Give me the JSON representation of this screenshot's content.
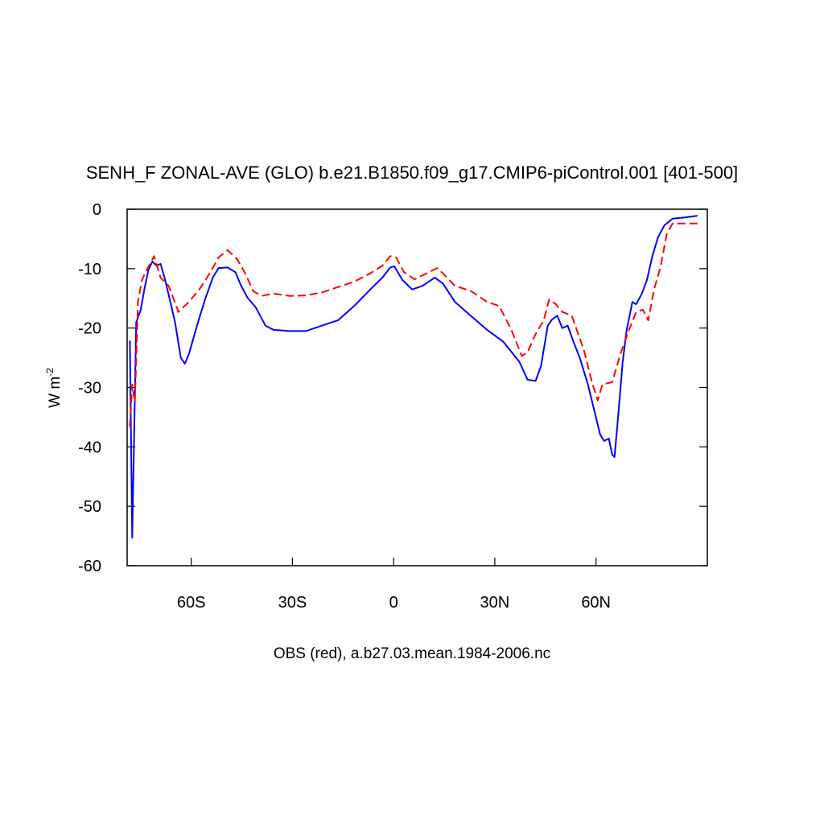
{
  "chart_data": {
    "type": "line",
    "title": "SENH_F ZONAL-AVE (GLO) b.e21.B1850.f09_g17.CMIP6-piControl.001 [401-500]",
    "x_label": "OBS (red), a.b27.03.mean.1984-2006.nc",
    "y_label": "W m",
    "y_label_sup": "-2",
    "xlim": [
      -79,
      93
    ],
    "ylim": [
      -60,
      0
    ],
    "xticks": [
      {
        "value": -60,
        "label": "60S"
      },
      {
        "value": -30,
        "label": "30S"
      },
      0,
      {
        "value": 30,
        "label": "30N"
      },
      {
        "value": 60,
        "label": "60N"
      }
    ],
    "yticks": [
      0,
      -10,
      -20,
      -30,
      -40,
      -50,
      -60
    ],
    "series": [
      {
        "color": "#0000ff",
        "dash": false,
        "x": [
          -78.2,
          -77.5,
          -76.3,
          -75,
          -73.9,
          -72.7,
          -71.5,
          -70.3,
          -69.1,
          -67.9,
          -66.2,
          -64.8,
          -63.1,
          -61.9,
          -60.7,
          -58.3,
          -55.9,
          -53.6,
          -51.9,
          -49.2,
          -46.9,
          -45.2,
          -43.3,
          -40.9,
          -38,
          -35.6,
          -30.8,
          -26,
          -21.3,
          -16.5,
          -11.7,
          -6.9,
          -3.3,
          -1,
          0.2,
          2.6,
          5.5,
          8.6,
          12.2,
          14.6,
          18.2,
          23,
          27.7,
          32.5,
          37.3,
          39.7,
          42.1,
          43.7,
          45.7,
          46.9,
          48.5,
          50,
          51.6,
          53.3,
          55.2,
          57.6,
          59.5,
          61.2,
          62.4,
          63.8,
          64.8,
          65.5,
          66.7,
          67.9,
          69.1,
          70.8,
          71.9,
          73.6,
          75.1,
          76.7,
          78.4,
          80.3,
          82.7,
          86.3,
          90.1
        ],
        "values": [
          -22.1,
          -55.3,
          -19,
          -17,
          -13.5,
          -10.2,
          -8.8,
          -9.5,
          -9.2,
          -11.5,
          -15.6,
          -19,
          -25,
          -26,
          -24.4,
          -19.6,
          -15.2,
          -11.5,
          -9.9,
          -9.8,
          -10.6,
          -12.9,
          -14.9,
          -16.5,
          -19.6,
          -20.3,
          -20.5,
          -20.5,
          -19.6,
          -18.7,
          -16.3,
          -13.5,
          -11.5,
          -9.8,
          -9.6,
          -11.9,
          -13.5,
          -12.9,
          -11.5,
          -12.5,
          -15.6,
          -18,
          -20.3,
          -22.3,
          -25.7,
          -28.7,
          -28.9,
          -26.4,
          -19.6,
          -18.6,
          -17.9,
          -20,
          -19.6,
          -22.3,
          -25,
          -29.5,
          -33.9,
          -37.9,
          -39,
          -38.6,
          -41.3,
          -41.7,
          -33.9,
          -25.7,
          -20.3,
          -15.6,
          -16,
          -14.2,
          -11.9,
          -7.9,
          -4.7,
          -2.7,
          -1.6,
          -1.4,
          -1.1
        ]
      },
      {
        "color": "#ff0000",
        "dash": true,
        "x": [
          -78.2,
          -77.5,
          -76.7,
          -75.8,
          -74.6,
          -73.2,
          -71,
          -69.1,
          -66.7,
          -63.8,
          -60.7,
          -57.6,
          -54.3,
          -51.9,
          -49.2,
          -46.4,
          -44,
          -41.6,
          -39.2,
          -35.6,
          -30.8,
          -26,
          -21.3,
          -16.5,
          -11.7,
          -6.9,
          -3.3,
          -1,
          0.7,
          3.1,
          6.2,
          9.8,
          12.9,
          14.6,
          18.2,
          23,
          27.7,
          31.3,
          34.9,
          38,
          39.7,
          42.1,
          44.5,
          46.1,
          48.1,
          50,
          52.8,
          56.4,
          58.8,
          60.5,
          61.9,
          64.8,
          67.2,
          69.6,
          71.9,
          73.9,
          75.5,
          77.2,
          79.1,
          81,
          82.7,
          86.3,
          90.1
        ],
        "values": [
          -36.6,
          -29.5,
          -32.5,
          -15.6,
          -11.9,
          -10.2,
          -7.9,
          -11.5,
          -12.9,
          -17.3,
          -15.6,
          -13.5,
          -10.6,
          -8.1,
          -6.9,
          -8.4,
          -10.8,
          -13.8,
          -14.6,
          -14.2,
          -14.6,
          -14.5,
          -14,
          -13.1,
          -12.2,
          -10.8,
          -9.5,
          -7.9,
          -8.1,
          -10.6,
          -11.8,
          -10.8,
          -9.9,
          -10.8,
          -12.9,
          -13.8,
          -15.6,
          -16.3,
          -20.3,
          -24.7,
          -24.1,
          -21,
          -18.7,
          -15.2,
          -16,
          -17.3,
          -17.9,
          -23.7,
          -29.1,
          -32.2,
          -29.5,
          -29.1,
          -24.4,
          -20.6,
          -17.3,
          -16.9,
          -18.7,
          -13.5,
          -9.8,
          -4.1,
          -2.4,
          -2.4,
          -2.4
        ]
      }
    ]
  }
}
